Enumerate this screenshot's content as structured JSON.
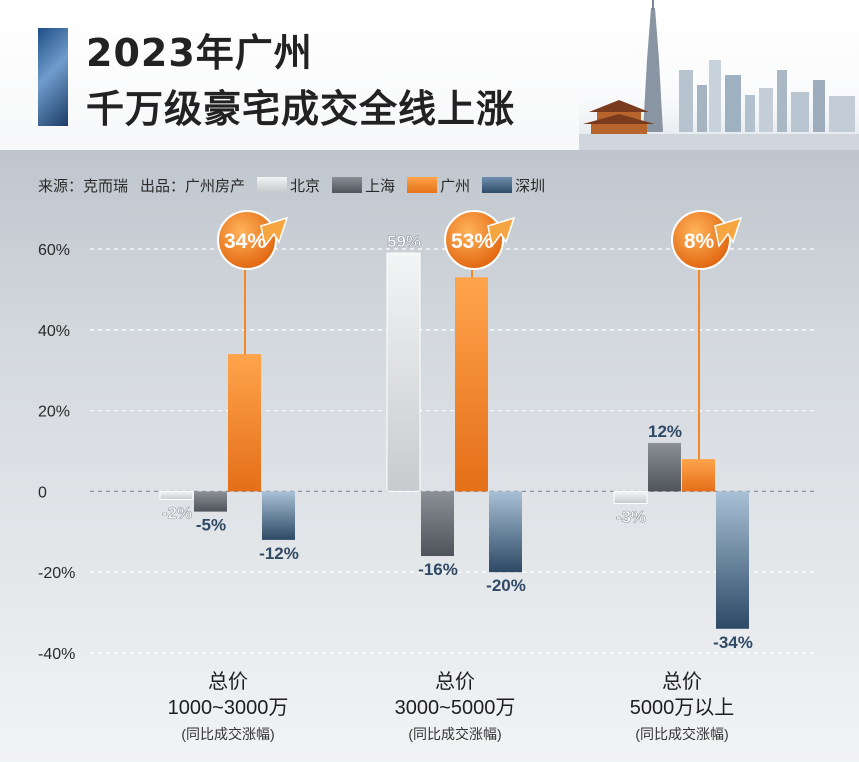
{
  "header": {
    "title_line1": "2023年广州",
    "title_line2": "千万级豪宅成交全线上涨"
  },
  "meta": {
    "source": "来源：克而瑞",
    "publisher": "出品：广州房产"
  },
  "colors": {
    "北京": "#d6d8da",
    "上海": "#6b7078",
    "广州": "#f08a24",
    "深圳": "#3f5f7e"
  },
  "chart_data": {
    "type": "bar",
    "categories": [
      {
        "label": "总价",
        "sub": "1000~3000万",
        "note": "(同比成交涨幅)"
      },
      {
        "label": "总价",
        "sub": "3000~5000万",
        "note": "(同比成交涨幅)"
      },
      {
        "label": "总价",
        "sub": "5000万以上",
        "note": "(同比成交涨幅)"
      }
    ],
    "series": [
      {
        "name": "北京",
        "values": [
          -2,
          59,
          -3
        ],
        "labels": [
          "-2%",
          "59%",
          "-3%"
        ]
      },
      {
        "name": "上海",
        "values": [
          -5,
          -16,
          12
        ],
        "labels": [
          "-5%",
          "-16%",
          "12%"
        ]
      },
      {
        "name": "广州",
        "values": [
          34,
          53,
          8
        ],
        "labels": [
          "34%",
          "53%",
          "8%"
        ]
      },
      {
        "name": "深圳",
        "values": [
          -12,
          -20,
          -34
        ],
        "labels": [
          "-12%",
          "-20%",
          "-34%"
        ]
      }
    ],
    "yticks": [
      60,
      40,
      20,
      0,
      -20,
      -40
    ],
    "ytick_labels": [
      "60%",
      "40%",
      "20%",
      "0",
      "-20%",
      "-40%"
    ],
    "ylim": [
      -40,
      60
    ],
    "highlight_series": "广州",
    "grid": true,
    "legend_position": "top-left"
  }
}
